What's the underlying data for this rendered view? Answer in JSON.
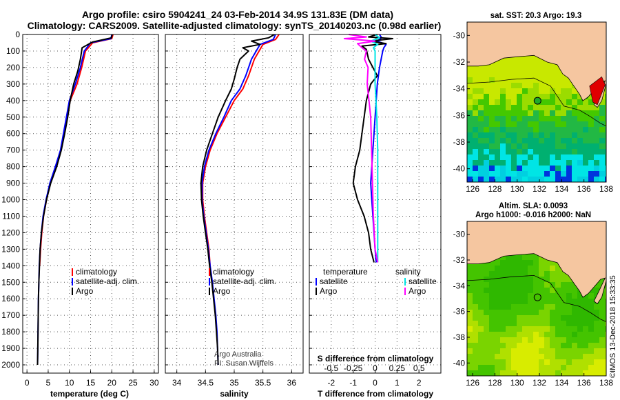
{
  "header": {
    "title_line1": "Argo profile: csiro 5904241_24 03-Feb-2014 34.9S 131.83E (DM data)",
    "title_line2": "Climatology: CARS2009. Satellite-adjusted climatology: synTS_20140203.nc (0.98d earlier)"
  },
  "colors": {
    "climatology": "#ff0000",
    "satellite": "#0000ff",
    "argo": "#000000",
    "sal_satellite": "#00e5e5",
    "sal_argo": "#ff00ff",
    "land": "#f5c6a0"
  },
  "chart_data": [
    {
      "type": "line",
      "id": "temperature",
      "xlabel": "temperature (deg C)",
      "xlim": [
        -1,
        31
      ],
      "ylim": [
        2050,
        0
      ],
      "xticks": [
        "0",
        "5",
        "10",
        "15",
        "20",
        "25",
        "30"
      ],
      "yticks": [
        "0",
        "100",
        "200",
        "300",
        "400",
        "500",
        "600",
        "700",
        "800",
        "900",
        "1000",
        "1100",
        "1200",
        "1300",
        "1400",
        "1500",
        "1600",
        "1700",
        "1800",
        "1900",
        "2000"
      ],
      "legend": [
        "climatology",
        "satellite-adj. clim.",
        "Argo"
      ],
      "series": [
        {
          "name": "climatology",
          "color": "#ff0000",
          "points": [
            [
              20.3,
              0
            ],
            [
              20.0,
              25
            ],
            [
              15.5,
              50
            ],
            [
              13.8,
              100
            ],
            [
              12.9,
              200
            ],
            [
              11.8,
              300
            ],
            [
              10.2,
              400
            ],
            [
              9.5,
              500
            ],
            [
              8.8,
              600
            ],
            [
              8.0,
              700
            ],
            [
              6.8,
              800
            ],
            [
              5.5,
              900
            ],
            [
              4.6,
              1000
            ],
            [
              3.9,
              1100
            ],
            [
              3.5,
              1200
            ],
            [
              3.2,
              1300
            ],
            [
              3.0,
              1400
            ]
          ]
        },
        {
          "name": "satellite-adj. clim.",
          "color": "#0000ff",
          "points": [
            [
              20.0,
              0
            ],
            [
              19.8,
              25
            ],
            [
              15.0,
              50
            ],
            [
              13.5,
              100
            ],
            [
              12.6,
              200
            ],
            [
              11.4,
              300
            ],
            [
              10.0,
              400
            ],
            [
              9.3,
              500
            ],
            [
              8.6,
              600
            ],
            [
              7.9,
              700
            ],
            [
              6.7,
              800
            ],
            [
              5.4,
              900
            ],
            [
              4.5,
              1000
            ],
            [
              3.8,
              1100
            ],
            [
              3.4,
              1200
            ],
            [
              3.1,
              1300
            ],
            [
              2.9,
              1400
            ],
            [
              2.8,
              1500
            ],
            [
              2.7,
              1600
            ],
            [
              2.65,
              1700
            ],
            [
              2.6,
              1800
            ],
            [
              2.55,
              1900
            ],
            [
              2.5,
              2000
            ]
          ]
        },
        {
          "name": "Argo",
          "color": "#000000",
          "points": [
            [
              20.1,
              0
            ],
            [
              19.9,
              20
            ],
            [
              15.5,
              45
            ],
            [
              13.0,
              80
            ],
            [
              12.6,
              150
            ],
            [
              12.0,
              220
            ],
            [
              11.0,
              300
            ],
            [
              10.2,
              400
            ],
            [
              9.6,
              500
            ],
            [
              8.9,
              600
            ],
            [
              8.1,
              700
            ],
            [
              7.0,
              800
            ],
            [
              5.6,
              900
            ],
            [
              4.6,
              1000
            ],
            [
              3.9,
              1100
            ],
            [
              3.4,
              1200
            ],
            [
              3.1,
              1300
            ],
            [
              2.95,
              1400
            ],
            [
              2.8,
              1500
            ],
            [
              2.7,
              1600
            ],
            [
              2.65,
              1700
            ],
            [
              2.6,
              1800
            ],
            [
              2.55,
              1900
            ],
            [
              2.5,
              2000
            ]
          ]
        }
      ]
    },
    {
      "type": "line",
      "id": "salinity",
      "xlabel": "salinity",
      "xlim": [
        33.8,
        36.2
      ],
      "ylim": [
        2050,
        0
      ],
      "xticks": [
        "34",
        "34.5",
        "35",
        "35.5",
        "36"
      ],
      "legend": [
        "climatology",
        "satellite-adj. clim.",
        "Argo"
      ],
      "series": [
        {
          "name": "climatology",
          "color": "#ff0000",
          "points": [
            [
              35.78,
              0
            ],
            [
              35.72,
              30
            ],
            [
              35.5,
              60
            ],
            [
              35.35,
              150
            ],
            [
              35.25,
              250
            ],
            [
              35.15,
              330
            ],
            [
              35.0,
              400
            ],
            [
              34.85,
              500
            ],
            [
              34.7,
              600
            ],
            [
              34.58,
              700
            ],
            [
              34.5,
              800
            ],
            [
              34.45,
              900
            ],
            [
              34.45,
              1000
            ],
            [
              34.48,
              1100
            ],
            [
              34.52,
              1200
            ],
            [
              34.56,
              1300
            ],
            [
              34.58,
              1400
            ]
          ]
        },
        {
          "name": "satellite-adj. clim.",
          "color": "#0000ff",
          "points": [
            [
              35.72,
              0
            ],
            [
              35.68,
              30
            ],
            [
              35.45,
              60
            ],
            [
              35.3,
              150
            ],
            [
              35.2,
              250
            ],
            [
              35.1,
              330
            ],
            [
              34.95,
              400
            ],
            [
              34.82,
              500
            ],
            [
              34.68,
              600
            ],
            [
              34.56,
              700
            ],
            [
              34.48,
              800
            ],
            [
              34.44,
              900
            ],
            [
              34.44,
              1000
            ],
            [
              34.47,
              1100
            ],
            [
              34.51,
              1200
            ],
            [
              34.55,
              1300
            ],
            [
              34.58,
              1400
            ],
            [
              34.62,
              1500
            ],
            [
              34.65,
              1600
            ],
            [
              34.68,
              1700
            ],
            [
              34.7,
              1800
            ],
            [
              34.71,
              1900
            ],
            [
              34.72,
              2000
            ]
          ]
        },
        {
          "name": "Argo",
          "color": "#000000",
          "points": [
            [
              35.7,
              0
            ],
            [
              35.6,
              20
            ],
            [
              35.3,
              40
            ],
            [
              35.45,
              60
            ],
            [
              35.15,
              80
            ],
            [
              35.25,
              100
            ],
            [
              35.1,
              150
            ],
            [
              35.05,
              200
            ],
            [
              35.0,
              270
            ],
            [
              34.95,
              330
            ],
            [
              34.85,
              400
            ],
            [
              34.72,
              500
            ],
            [
              34.62,
              600
            ],
            [
              34.52,
              700
            ],
            [
              34.45,
              800
            ],
            [
              34.42,
              900
            ],
            [
              34.43,
              1000
            ],
            [
              34.46,
              1100
            ],
            [
              34.5,
              1200
            ],
            [
              34.54,
              1300
            ],
            [
              34.57,
              1400
            ],
            [
              34.61,
              1500
            ],
            [
              34.64,
              1600
            ],
            [
              34.67,
              1700
            ],
            [
              34.69,
              1800
            ],
            [
              34.71,
              1900
            ],
            [
              34.72,
              2000
            ]
          ]
        }
      ]
    },
    {
      "type": "line",
      "id": "difference",
      "xlabel": "T difference from climatology",
      "xlabel2": "S difference from climatology",
      "xlim": [
        -3,
        3
      ],
      "ylim": [
        2050,
        0
      ],
      "xticks": [
        "-2",
        "-1",
        "0",
        "1",
        "2"
      ],
      "xticks2": [
        "-0.5",
        "-0.25",
        "0",
        "0.25",
        "0.5"
      ],
      "legend_left_title": "temperature",
      "legend_right_title": "salinity",
      "legend": [
        "satellite",
        "Argo",
        "satellite",
        "Argo"
      ],
      "series": [
        {
          "name": "T satellite",
          "color": "#0000ff",
          "points": [
            [
              0.2,
              0
            ],
            [
              0.3,
              20
            ],
            [
              0.1,
              40
            ],
            [
              0.5,
              60
            ],
            [
              0.4,
              80
            ],
            [
              0.35,
              100
            ],
            [
              0.2,
              200
            ],
            [
              0.1,
              300
            ],
            [
              0.05,
              400
            ],
            [
              0.0,
              500
            ],
            [
              -0.05,
              600
            ],
            [
              -0.1,
              700
            ],
            [
              -0.15,
              800
            ],
            [
              -0.2,
              900
            ],
            [
              -0.15,
              1000
            ],
            [
              -0.1,
              1100
            ],
            [
              -0.05,
              1200
            ],
            [
              0.0,
              1300
            ],
            [
              0.05,
              1380
            ]
          ]
        },
        {
          "name": "T Argo",
          "color": "#000000",
          "points": [
            [
              0.1,
              0
            ],
            [
              -0.3,
              15
            ],
            [
              0.8,
              25
            ],
            [
              -0.2,
              40
            ],
            [
              0.5,
              55
            ],
            [
              -0.6,
              70
            ],
            [
              -0.4,
              90
            ],
            [
              -0.3,
              150
            ],
            [
              -0.1,
              200
            ],
            [
              0.1,
              250
            ],
            [
              -0.2,
              300
            ],
            [
              -0.4,
              400
            ],
            [
              -0.5,
              500
            ],
            [
              -0.6,
              600
            ],
            [
              -0.7,
              700
            ],
            [
              -0.9,
              800
            ],
            [
              -1.0,
              900
            ],
            [
              -0.8,
              1000
            ],
            [
              -0.5,
              1100
            ],
            [
              -0.3,
              1200
            ],
            [
              -0.2,
              1300
            ],
            [
              -0.05,
              1380
            ]
          ]
        },
        {
          "name": "S satellite",
          "color": "#00e5e5",
          "points": [
            [
              0.0,
              0
            ],
            [
              0.05,
              20
            ],
            [
              -0.05,
              40
            ],
            [
              0.03,
              60
            ],
            [
              -0.02,
              80
            ],
            [
              0.0,
              100
            ],
            [
              0.0,
              300
            ],
            [
              0.02,
              500
            ],
            [
              0.03,
              700
            ],
            [
              0.03,
              900
            ],
            [
              0.03,
              1100
            ],
            [
              0.03,
              1300
            ],
            [
              0.03,
              1380
            ]
          ]
        },
        {
          "name": "S Argo",
          "color": "#ff00ff",
          "points": [
            [
              -0.3,
              0
            ],
            [
              -0.1,
              15
            ],
            [
              -0.35,
              25
            ],
            [
              0.0,
              40
            ],
            [
              -0.2,
              55
            ],
            [
              -0.15,
              80
            ],
            [
              -0.1,
              100
            ],
            [
              -0.12,
              150
            ],
            [
              -0.08,
              200
            ],
            [
              -0.09,
              300
            ],
            [
              -0.07,
              400
            ],
            [
              -0.05,
              500
            ],
            [
              -0.04,
              700
            ],
            [
              -0.03,
              900
            ],
            [
              -0.02,
              1100
            ],
            [
              0.0,
              1300
            ],
            [
              0.03,
              1380
            ]
          ]
        }
      ]
    },
    {
      "type": "heatmap",
      "id": "sst-map",
      "title": "sat. SST: 20.3 Argo: 19.3",
      "xticks": [
        "126",
        "128",
        "130",
        "132",
        "134",
        "136",
        "138"
      ],
      "yticks": [
        "-30",
        "-32",
        "-34",
        "-36",
        "-38",
        "-40"
      ],
      "xlim": [
        125.5,
        138
      ],
      "ylim": [
        -41,
        -29
      ]
    },
    {
      "type": "heatmap",
      "id": "sla-map",
      "title_line1": "Altim. SLA: 0.0093",
      "title_line2": "Argo h1000: -0.016 h2000: NaN",
      "xticks": [
        "126",
        "128",
        "130",
        "132",
        "134",
        "136",
        "138"
      ],
      "yticks": [
        "-30",
        "-32",
        "-34",
        "-36",
        "-38",
        "-40"
      ],
      "xlim": [
        125.5,
        138
      ],
      "ylim": [
        -41,
        -29
      ]
    }
  ],
  "credits": {
    "line1": "Argo Australia",
    "line2": "PI: Susan Wijffels"
  },
  "stamp": "©IMOS 13-Dec-2018 15:33:35"
}
